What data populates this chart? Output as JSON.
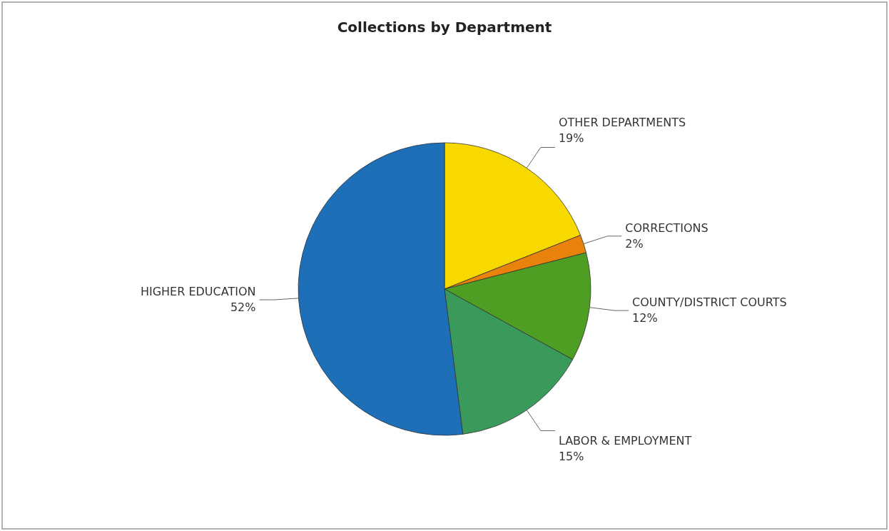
{
  "chart_data": {
    "type": "pie",
    "title": "Collections by Department",
    "categories": [
      "OTHER DEPARTMENTS",
      "CORRECTIONS",
      "COUNTY/DISTRICT COURTS",
      "LABOR & EMPLOYMENT",
      "HIGHER EDUCATION"
    ],
    "values": [
      19,
      2,
      12,
      15,
      52
    ],
    "value_labels": [
      "19%",
      "2%",
      "12%",
      "15%",
      "52%"
    ],
    "colors": [
      "#f7d900",
      "#e8820a",
      "#4f9e24",
      "#3a9a5c",
      "#1d6fb8"
    ]
  }
}
